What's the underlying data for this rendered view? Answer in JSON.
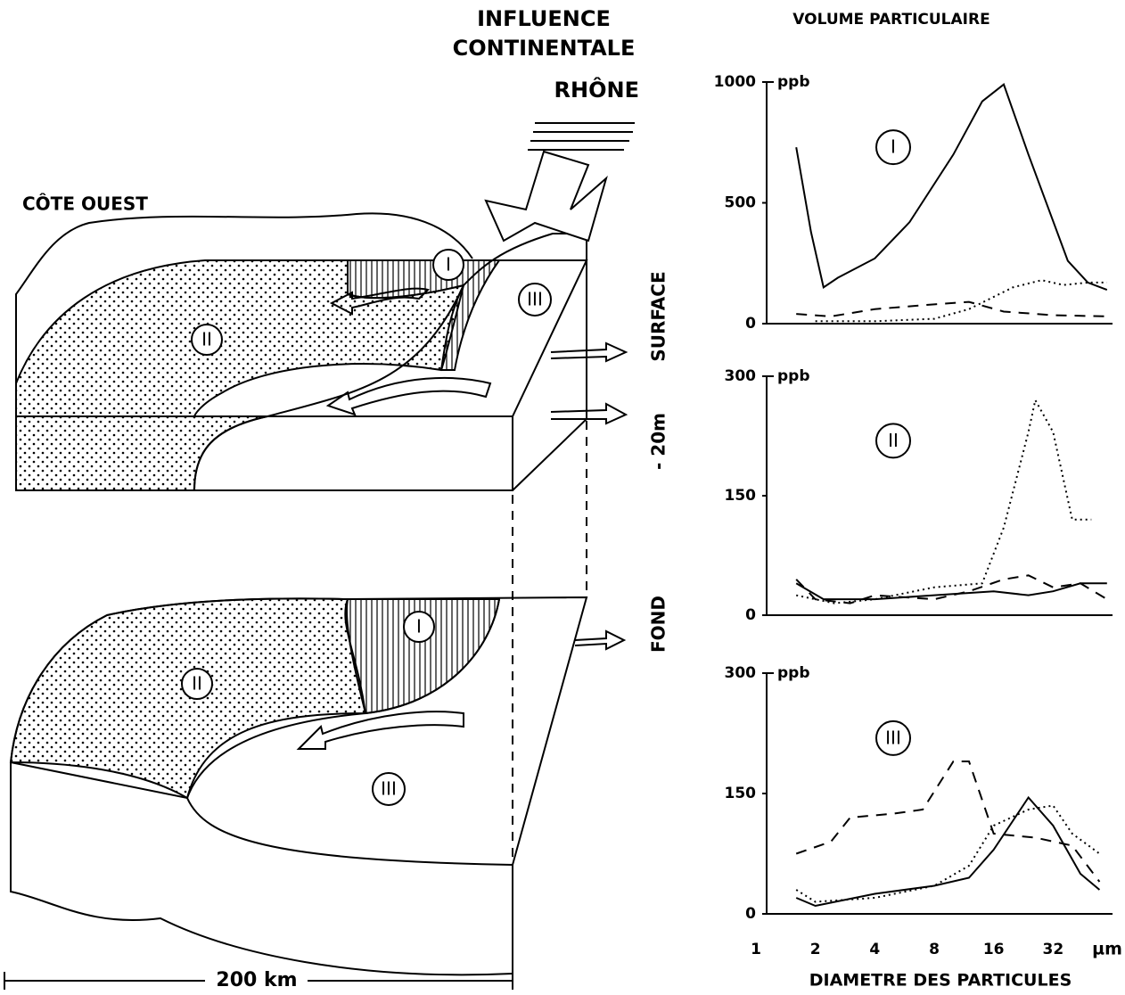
{
  "diagram": {
    "influence": [
      "INFLUENCE",
      "CONTINENTALE"
    ],
    "river": "RHÔNE",
    "coast": "CÔTE OUEST",
    "levels": [
      "SURFACE",
      "- 20m",
      "FOND"
    ],
    "top_zones": [
      "I",
      "II",
      "III"
    ],
    "bottom_zones": [
      "I",
      "II",
      "III"
    ],
    "scale": "200 km"
  },
  "chart_data": [
    {
      "type": "line",
      "title": "VOLUME PARTICULAIRE",
      "annotation": "I",
      "ylabel": "ppb",
      "xscale": "log",
      "xlim": [
        1,
        64
      ],
      "ylim": [
        0,
        1000
      ],
      "yticks": [
        0,
        500,
        1000
      ],
      "series": [
        {
          "style": "solid",
          "color": "#000",
          "x": [
            1.6,
            1.9,
            2.2,
            2.6,
            4,
            6,
            10,
            14,
            18,
            24,
            38,
            48,
            60
          ],
          "values": [
            730,
            380,
            150,
            190,
            270,
            420,
            700,
            920,
            990,
            700,
            260,
            170,
            140
          ]
        },
        {
          "style": "dashed",
          "color": "#000",
          "x": [
            1.6,
            2.4,
            4,
            8,
            12,
            18,
            32,
            60
          ],
          "values": [
            40,
            30,
            60,
            80,
            90,
            50,
            35,
            30
          ]
        },
        {
          "style": "dotted",
          "color": "#000",
          "x": [
            2,
            4,
            8,
            12,
            20,
            28,
            36,
            48,
            60
          ],
          "values": [
            10,
            10,
            20,
            60,
            150,
            180,
            160,
            170,
            170
          ]
        }
      ]
    },
    {
      "type": "line",
      "annotation": "II",
      "ylabel": "ppb",
      "xscale": "log",
      "xlim": [
        1,
        64
      ],
      "ylim": [
        0,
        300
      ],
      "yticks": [
        0,
        150,
        300
      ],
      "series": [
        {
          "style": "solid",
          "color": "#000",
          "x": [
            1.6,
            2.2,
            4,
            8,
            16,
            24,
            32,
            44,
            60
          ],
          "values": [
            40,
            20,
            20,
            25,
            30,
            25,
            30,
            40,
            40
          ]
        },
        {
          "style": "dashed",
          "color": "#000",
          "x": [
            1.6,
            2,
            3,
            4,
            8,
            12,
            18,
            24,
            32,
            44,
            60
          ],
          "values": [
            45,
            20,
            15,
            25,
            20,
            30,
            45,
            50,
            35,
            40,
            20
          ]
        },
        {
          "style": "dotted",
          "color": "#000",
          "x": [
            1.6,
            2.5,
            4,
            8,
            14,
            18,
            24,
            26,
            32,
            40,
            50
          ],
          "values": [
            25,
            15,
            20,
            35,
            40,
            110,
            230,
            270,
            230,
            120,
            120
          ]
        }
      ]
    },
    {
      "type": "line",
      "annotation": "III",
      "ylabel": "ppb",
      "xlabel": "DIAMETRE DES PARTICULES",
      "x_unit": "µm",
      "xscale": "log",
      "xlim": [
        1,
        64
      ],
      "xticks": [
        1,
        2,
        4,
        8,
        16,
        32
      ],
      "ylim": [
        0,
        300
      ],
      "yticks": [
        0,
        150,
        300
      ],
      "series": [
        {
          "style": "dashed",
          "color": "#000",
          "x": [
            1.6,
            2.4,
            3,
            5,
            7,
            10,
            12,
            16,
            26,
            40,
            55
          ],
          "values": [
            75,
            90,
            120,
            125,
            130,
            190,
            190,
            100,
            95,
            85,
            40
          ]
        },
        {
          "style": "solid",
          "color": "#000",
          "x": [
            1.6,
            2,
            4,
            8,
            12,
            16,
            24,
            32,
            44,
            55
          ],
          "values": [
            20,
            10,
            25,
            35,
            45,
            80,
            145,
            110,
            50,
            30
          ]
        },
        {
          "style": "dotted",
          "color": "#000",
          "x": [
            1.6,
            2,
            4,
            8,
            12,
            16,
            24,
            32,
            40,
            55
          ],
          "values": [
            30,
            15,
            20,
            35,
            60,
            110,
            130,
            135,
            100,
            75
          ]
        }
      ]
    }
  ]
}
